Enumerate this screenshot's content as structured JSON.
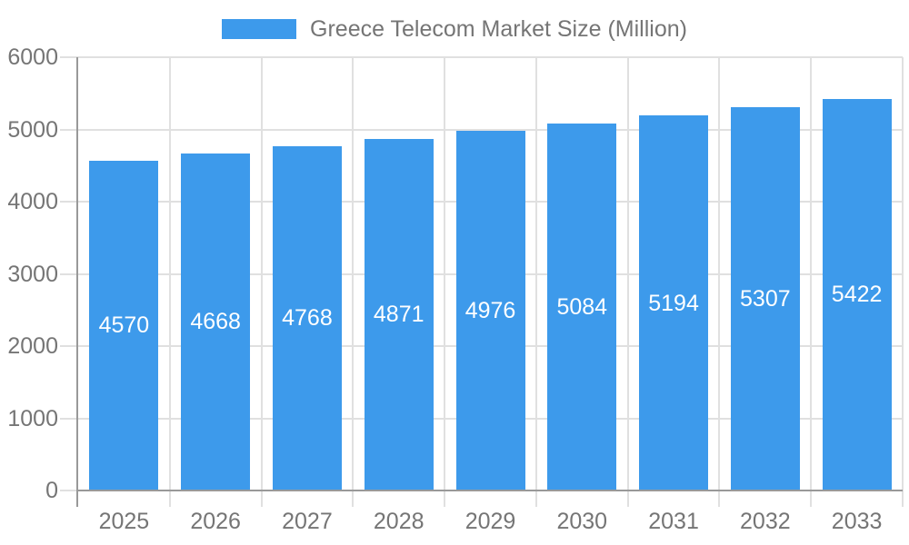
{
  "chart_data": {
    "type": "bar",
    "title": "Greece Telecom Market Size (Million)",
    "legend_entries": [
      "Greece Telecom Market Size (Million)"
    ],
    "categories": [
      "2025",
      "2026",
      "2027",
      "2028",
      "2029",
      "2030",
      "2031",
      "2032",
      "2033"
    ],
    "values": [
      4570,
      4668,
      4768,
      4871,
      4976,
      5084,
      5194,
      5307,
      5422
    ],
    "xlabel": "",
    "ylabel": "",
    "ylim": [
      0,
      6000
    ],
    "yticks": [
      0,
      1000,
      2000,
      3000,
      4000,
      5000,
      6000
    ],
    "grid": true,
    "legend_position": "top-center",
    "bar_value_label_position": "inside-center",
    "colors": {
      "bar": "#3D9AEB",
      "bar_label": "#FFFFFF",
      "axis_text": "#757575",
      "grid_line": "#E0E0E0",
      "axis_line": "#999999",
      "background": "#FFFFFF"
    }
  }
}
